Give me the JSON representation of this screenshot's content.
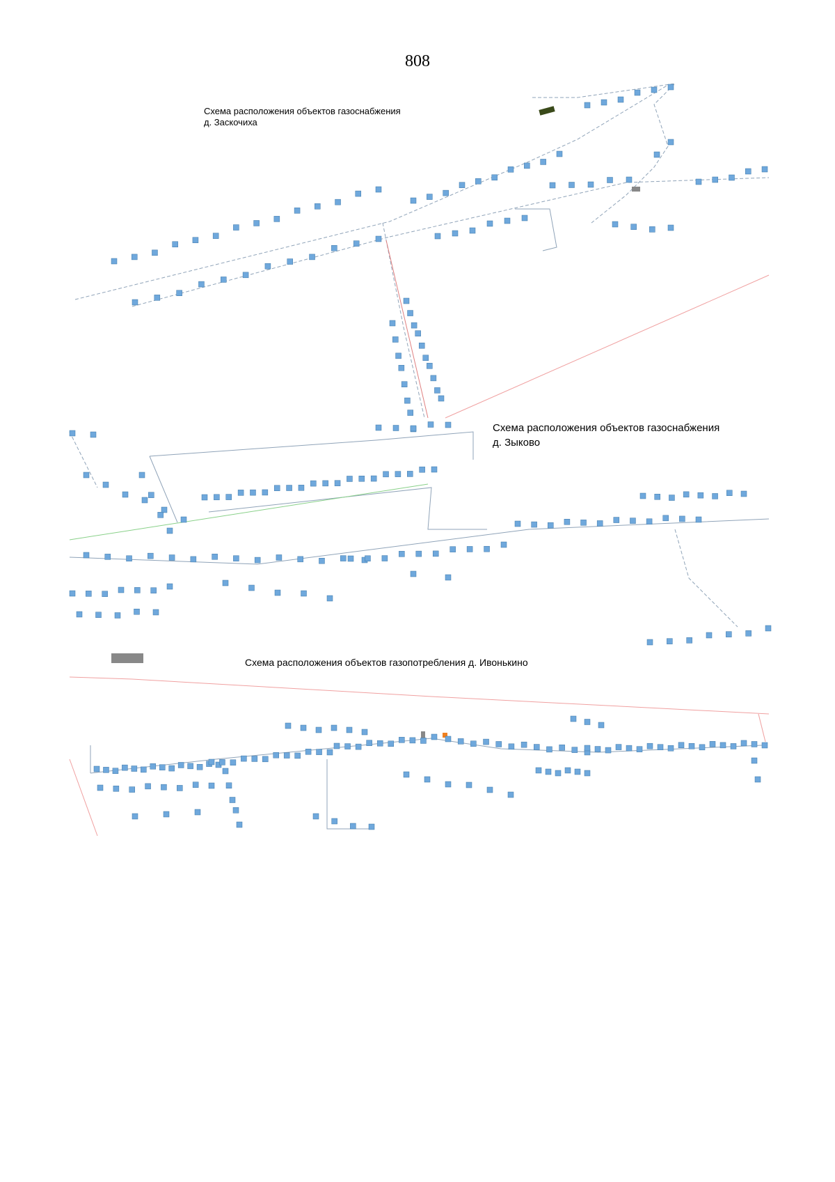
{
  "page_number": "808",
  "schemes": [
    {
      "title": [
        "Схема расположения объектов газоснабжения",
        "д. Заскочиха"
      ]
    },
    {
      "title": [
        "Схема расположения объектов газоснабжения",
        "д. Зыково"
      ]
    },
    {
      "title": [
        "Схема расположения объектов газопотребления д. Ивонькино"
      ]
    }
  ]
}
